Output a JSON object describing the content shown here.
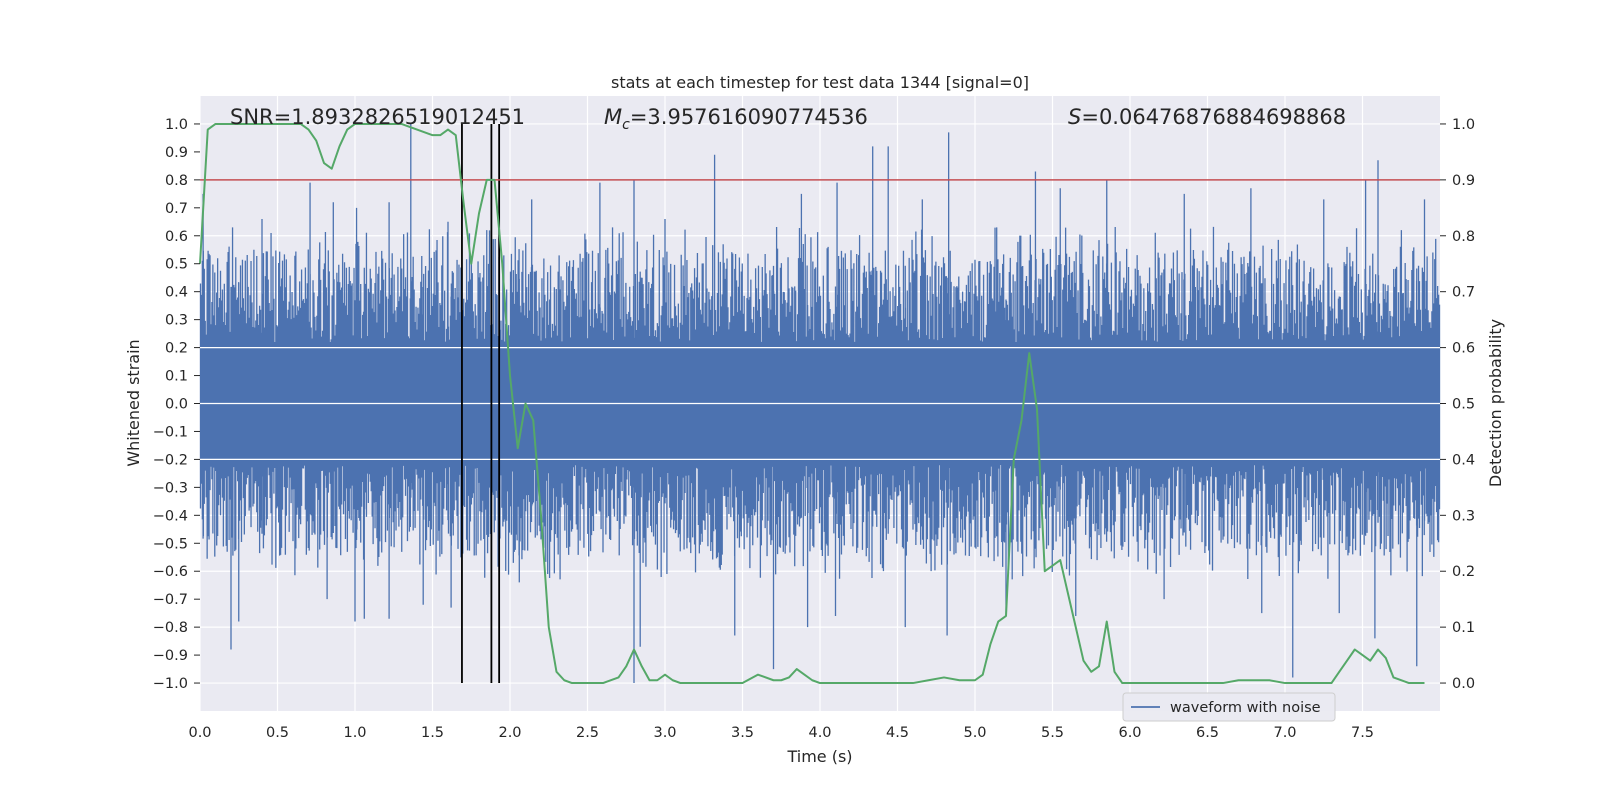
{
  "chart_data": {
    "type": "line",
    "title": "stats at each timestep for test data 1344 [signal=0]",
    "xlabel": "Time (s)",
    "ylabel": "Whitened strain",
    "y2label": "Detection probability",
    "xlim": [
      0.0,
      8.0
    ],
    "ylim": [
      -1.1,
      1.1
    ],
    "y2lim": [
      -0.05,
      1.05
    ],
    "xticks": [
      "0.0",
      "0.5",
      "1.0",
      "1.5",
      "2.0",
      "2.5",
      "3.0",
      "3.5",
      "4.0",
      "4.5",
      "5.0",
      "5.5",
      "6.0",
      "6.5",
      "7.0",
      "7.5"
    ],
    "yticks": [
      "1.0",
      "0.9",
      "0.8",
      "0.7",
      "0.6",
      "0.5",
      "0.4",
      "0.3",
      "0.2",
      "0.1",
      "0.0",
      "−0.1",
      "−0.2",
      "−0.3",
      "−0.4",
      "−0.5",
      "−0.6",
      "−0.7",
      "−0.8",
      "−0.9",
      "−1.0"
    ],
    "y2ticks": [
      "1.0",
      "0.9",
      "0.8",
      "0.7",
      "0.6",
      "0.5",
      "0.4",
      "0.3",
      "0.2",
      "0.1",
      "0.0"
    ],
    "grid": true,
    "legend_position": "bottom-right",
    "annotations": {
      "snr": "SNR=1.8932826519012451",
      "mc_symbol": "M",
      "mc_sub": "c",
      "mc_value": "=3.957616090774536",
      "s_symbol": "S",
      "s_value": "=0.06476876884698868"
    },
    "threshold_line": {
      "y2": 0.9
    },
    "vertical_markers_x": [
      1.69,
      1.88,
      1.93
    ],
    "series": [
      {
        "name": "waveform with noise",
        "kind": "noise",
        "color": "#4c72b0",
        "core_amplitude": 0.2,
        "peaks_up": [
          [
            0.02,
            0.75
          ],
          [
            0.21,
            0.63
          ],
          [
            0.4,
            0.66
          ],
          [
            0.71,
            0.79
          ],
          [
            0.86,
            0.72
          ],
          [
            1.01,
            0.7
          ],
          [
            1.22,
            0.72
          ],
          [
            1.36,
            1.0
          ],
          [
            1.6,
            0.65
          ],
          [
            1.85,
            0.62
          ],
          [
            2.14,
            0.73
          ],
          [
            2.58,
            0.79
          ],
          [
            2.8,
            0.8
          ],
          [
            3.0,
            0.66
          ],
          [
            3.32,
            0.89
          ],
          [
            3.88,
            0.75
          ],
          [
            4.11,
            0.79
          ],
          [
            4.34,
            0.92
          ],
          [
            4.44,
            0.92
          ],
          [
            4.66,
            0.73
          ],
          [
            4.83,
            0.97
          ],
          [
            5.14,
            0.63
          ],
          [
            5.39,
            0.83
          ],
          [
            5.55,
            0.77
          ],
          [
            5.85,
            0.8
          ],
          [
            6.35,
            0.75
          ],
          [
            6.78,
            0.77
          ],
          [
            7.25,
            0.73
          ],
          [
            7.52,
            0.8
          ],
          [
            7.6,
            0.87
          ],
          [
            7.9,
            0.73
          ]
        ],
        "peaks_down": [
          [
            0.2,
            -0.88
          ],
          [
            0.25,
            -0.78
          ],
          [
            0.82,
            -0.7
          ],
          [
            1.0,
            -0.78
          ],
          [
            1.06,
            -0.77
          ],
          [
            1.22,
            -0.77
          ],
          [
            1.44,
            -0.72
          ],
          [
            1.62,
            -0.73
          ],
          [
            2.06,
            -0.64
          ],
          [
            2.8,
            -1.0
          ],
          [
            2.84,
            -0.87
          ],
          [
            3.45,
            -0.83
          ],
          [
            3.7,
            -0.95
          ],
          [
            3.92,
            -0.8
          ],
          [
            4.1,
            -0.76
          ],
          [
            4.55,
            -0.8
          ],
          [
            4.82,
            -0.83
          ],
          [
            5.2,
            -0.76
          ],
          [
            5.65,
            -0.76
          ],
          [
            6.22,
            -0.7
          ],
          [
            6.85,
            -0.75
          ],
          [
            7.05,
            -0.98
          ],
          [
            7.35,
            -0.75
          ],
          [
            7.58,
            -0.84
          ],
          [
            7.85,
            -0.94
          ]
        ]
      },
      {
        "name": "",
        "kind": "probability",
        "color": "#55a868",
        "x": [
          0.0,
          0.05,
          0.1,
          0.15,
          0.2,
          0.3,
          0.4,
          0.5,
          0.6,
          0.65,
          0.7,
          0.75,
          0.8,
          0.85,
          0.9,
          0.95,
          1.0,
          1.1,
          1.2,
          1.3,
          1.4,
          1.5,
          1.55,
          1.6,
          1.65,
          1.7,
          1.75,
          1.8,
          1.85,
          1.9,
          1.95,
          2.0,
          2.05,
          2.1,
          2.15,
          2.2,
          2.25,
          2.3,
          2.35,
          2.4,
          2.5,
          2.6,
          2.7,
          2.75,
          2.8,
          2.85,
          2.9,
          2.95,
          3.0,
          3.05,
          3.1,
          3.2,
          3.3,
          3.4,
          3.5,
          3.6,
          3.7,
          3.75,
          3.8,
          3.85,
          3.9,
          3.95,
          4.0,
          4.1,
          4.2,
          4.3,
          4.4,
          4.5,
          4.6,
          4.7,
          4.8,
          4.9,
          5.0,
          5.05,
          5.1,
          5.15,
          5.2,
          5.25,
          5.3,
          5.35,
          5.4,
          5.45,
          5.5,
          5.55,
          5.6,
          5.65,
          5.7,
          5.75,
          5.8,
          5.85,
          5.9,
          5.95,
          6.0,
          6.2,
          6.4,
          6.6,
          6.7,
          6.8,
          6.9,
          7.0,
          7.1,
          7.2,
          7.3,
          7.35,
          7.4,
          7.45,
          7.5,
          7.55,
          7.6,
          7.65,
          7.7,
          7.8,
          7.9
        ],
        "values": [
          0.75,
          0.99,
          1.0,
          1.0,
          1.0,
          1.0,
          1.0,
          1.0,
          1.0,
          1.0,
          0.99,
          0.97,
          0.93,
          0.92,
          0.96,
          0.99,
          1.0,
          1.0,
          1.0,
          1.0,
          0.99,
          0.98,
          0.98,
          0.99,
          0.98,
          0.86,
          0.75,
          0.84,
          0.9,
          0.9,
          0.75,
          0.55,
          0.42,
          0.5,
          0.47,
          0.3,
          0.1,
          0.02,
          0.005,
          0.0,
          0.0,
          0.0,
          0.01,
          0.03,
          0.06,
          0.03,
          0.005,
          0.005,
          0.015,
          0.005,
          0.0,
          0.0,
          0.0,
          0.0,
          0.0,
          0.015,
          0.005,
          0.005,
          0.01,
          0.025,
          0.015,
          0.005,
          0.0,
          0.0,
          0.0,
          0.0,
          0.0,
          0.0,
          0.0,
          0.005,
          0.01,
          0.005,
          0.005,
          0.015,
          0.07,
          0.11,
          0.12,
          0.4,
          0.47,
          0.59,
          0.49,
          0.2,
          0.21,
          0.22,
          0.16,
          0.1,
          0.04,
          0.02,
          0.03,
          0.11,
          0.02,
          0.0,
          0.0,
          0.0,
          0.0,
          0.0,
          0.005,
          0.005,
          0.005,
          0.0,
          0.0,
          0.0,
          0.0,
          0.02,
          0.04,
          0.06,
          0.05,
          0.04,
          0.06,
          0.045,
          0.01,
          0.0,
          0.0
        ]
      }
    ]
  }
}
